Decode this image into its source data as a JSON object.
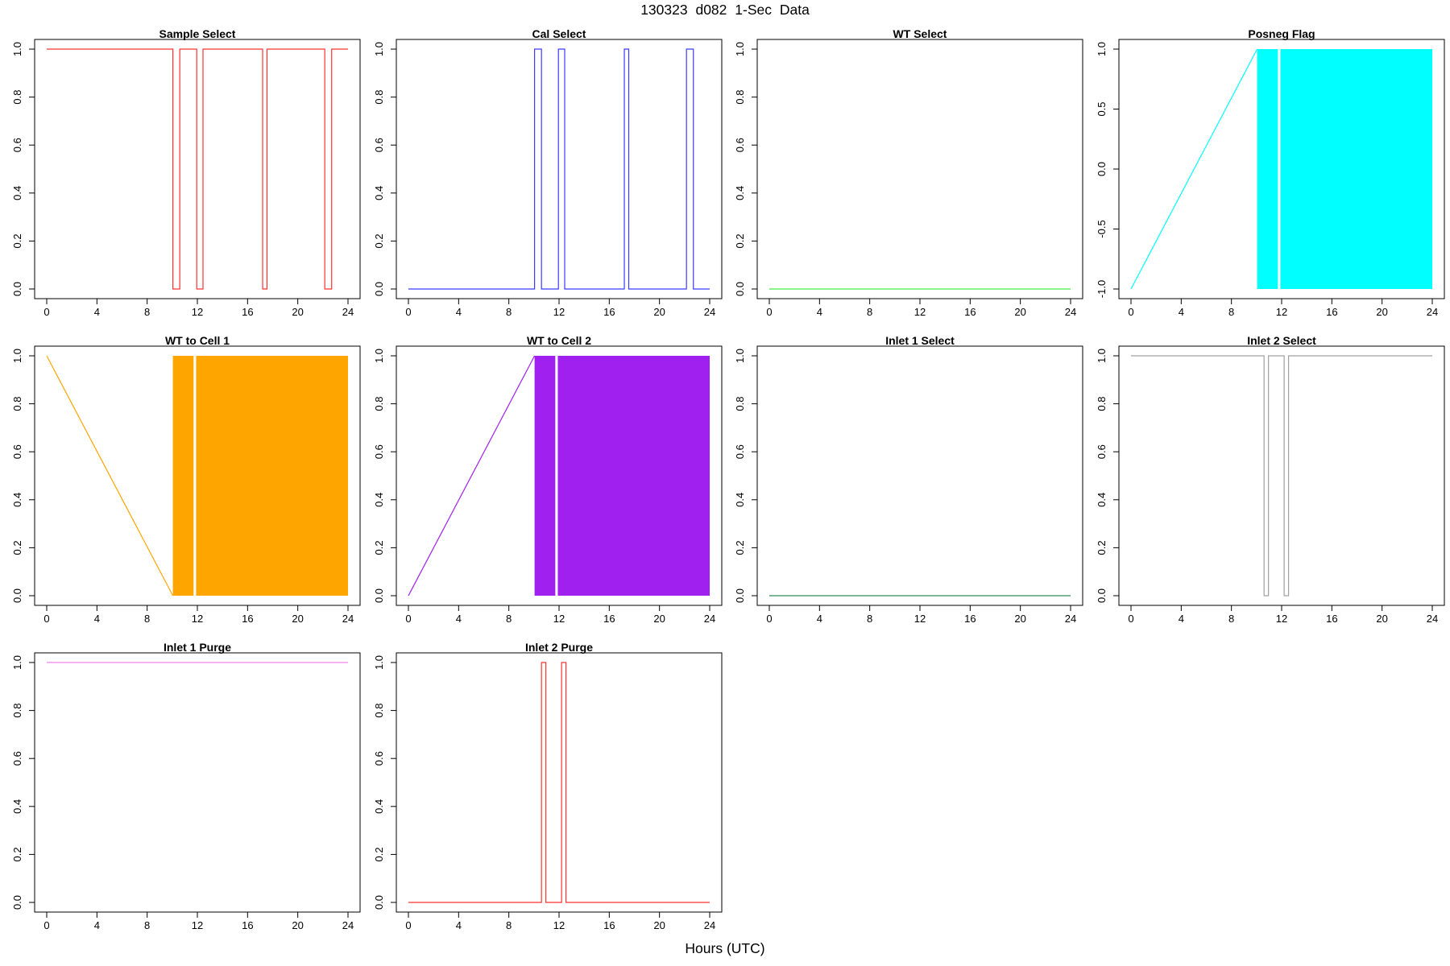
{
  "title": "130323   d082   1-Sec Data",
  "x_axis_title": "Hours (UTC)",
  "chart_data": [
    {
      "type": "line",
      "title": "Sample Select",
      "color": "#ff3030",
      "xlim": [
        0,
        24
      ],
      "ylim": [
        0,
        1
      ],
      "x_ticks": [
        0,
        4,
        8,
        12,
        16,
        20,
        24
      ],
      "y_ticks": [
        0,
        0.2,
        0.4,
        0.6,
        0.8,
        1
      ],
      "y_tick_labels": [
        "0.0",
        "0.2",
        "0.4",
        "0.6",
        "0.8",
        "1.0"
      ],
      "series": [
        {
          "x": [
            0,
            10.05,
            10.05,
            10.6,
            10.6,
            11.95,
            11.95,
            12.45,
            12.45,
            17.2,
            17.2,
            17.55,
            17.55,
            22.15,
            22.15,
            22.7,
            22.7,
            24
          ],
          "y": [
            1,
            1,
            0,
            0,
            1,
            1,
            0,
            0,
            1,
            1,
            0,
            0,
            1,
            1,
            0,
            0,
            1,
            1
          ]
        }
      ]
    },
    {
      "type": "line",
      "title": "Cal Select",
      "color": "#3a3aff",
      "xlim": [
        0,
        24
      ],
      "ylim": [
        0,
        1
      ],
      "x_ticks": [
        0,
        4,
        8,
        12,
        16,
        20,
        24
      ],
      "y_ticks": [
        0,
        0.2,
        0.4,
        0.6,
        0.8,
        1
      ],
      "y_tick_labels": [
        "0.0",
        "0.2",
        "0.4",
        "0.6",
        "0.8",
        "1.0"
      ],
      "series": [
        {
          "x": [
            0,
            10.05,
            10.05,
            10.6,
            10.6,
            11.95,
            11.95,
            12.45,
            12.45,
            17.2,
            17.2,
            17.55,
            17.55,
            22.15,
            22.15,
            22.7,
            22.7,
            24
          ],
          "y": [
            0,
            0,
            1,
            1,
            0,
            0,
            1,
            1,
            0,
            0,
            1,
            1,
            0,
            0,
            1,
            1,
            0,
            0
          ]
        }
      ]
    },
    {
      "type": "line",
      "title": "WT Select",
      "color": "#44ee44",
      "xlim": [
        0,
        24
      ],
      "ylim": [
        0,
        1
      ],
      "x_ticks": [
        0,
        4,
        8,
        12,
        16,
        20,
        24
      ],
      "y_ticks": [
        0,
        0.2,
        0.4,
        0.6,
        0.8,
        1
      ],
      "y_tick_labels": [
        "0.0",
        "0.2",
        "0.4",
        "0.6",
        "0.8",
        "1.0"
      ],
      "series": [
        {
          "x": [
            0,
            24
          ],
          "y": [
            0,
            0
          ]
        }
      ]
    },
    {
      "type": "area",
      "title": "Posneg Flag",
      "color": "#00ffff",
      "xlim": [
        0,
        24
      ],
      "ylim": [
        -1,
        1
      ],
      "x_ticks": [
        0,
        4,
        8,
        12,
        16,
        20,
        24
      ],
      "y_ticks": [
        -1,
        -0.5,
        0,
        0.5,
        1
      ],
      "y_tick_labels": [
        "-1.0",
        "-0.5",
        "0.0",
        "0.5",
        "1.0"
      ],
      "series": [
        {
          "x": [
            0,
            10.05
          ],
          "y": [
            -1,
            1
          ]
        }
      ],
      "bands": [
        {
          "x0": 10.05,
          "x1": 11.7,
          "y0": -1,
          "y1": 1
        },
        {
          "x0": 11.9,
          "x1": 24,
          "y0": -1,
          "y1": 1
        }
      ]
    },
    {
      "type": "area",
      "title": "WT to Cell 1",
      "color": "#ffa500",
      "xlim": [
        0,
        24
      ],
      "ylim": [
        0,
        1
      ],
      "x_ticks": [
        0,
        4,
        8,
        12,
        16,
        20,
        24
      ],
      "y_ticks": [
        0,
        0.2,
        0.4,
        0.6,
        0.8,
        1
      ],
      "y_tick_labels": [
        "0.0",
        "0.2",
        "0.4",
        "0.6",
        "0.8",
        "1.0"
      ],
      "series": [
        {
          "x": [
            0,
            10.05
          ],
          "y": [
            1,
            0
          ]
        }
      ],
      "bands": [
        {
          "x0": 10.05,
          "x1": 11.7,
          "y0": 0,
          "y1": 1
        },
        {
          "x0": 11.9,
          "x1": 24,
          "y0": 0,
          "y1": 1
        }
      ]
    },
    {
      "type": "area",
      "title": "WT to Cell 2",
      "color": "#a020f0",
      "xlim": [
        0,
        24
      ],
      "ylim": [
        0,
        1
      ],
      "x_ticks": [
        0,
        4,
        8,
        12,
        16,
        20,
        24
      ],
      "y_ticks": [
        0,
        0.2,
        0.4,
        0.6,
        0.8,
        1
      ],
      "y_tick_labels": [
        "0.0",
        "0.2",
        "0.4",
        "0.6",
        "0.8",
        "1.0"
      ],
      "series": [
        {
          "x": [
            0,
            10.05
          ],
          "y": [
            0,
            1
          ]
        }
      ],
      "bands": [
        {
          "x0": 10.05,
          "x1": 11.7,
          "y0": 0,
          "y1": 1
        },
        {
          "x0": 11.9,
          "x1": 24,
          "y0": 0,
          "y1": 1
        }
      ]
    },
    {
      "type": "line",
      "title": "Inlet 1 Select",
      "color": "#2e8b57",
      "xlim": [
        0,
        24
      ],
      "ylim": [
        0,
        1
      ],
      "x_ticks": [
        0,
        4,
        8,
        12,
        16,
        20,
        24
      ],
      "y_ticks": [
        0,
        0.2,
        0.4,
        0.6,
        0.8,
        1
      ],
      "y_tick_labels": [
        "0.0",
        "0.2",
        "0.4",
        "0.6",
        "0.8",
        "1.0"
      ],
      "series": [
        {
          "x": [
            0,
            24
          ],
          "y": [
            0,
            0
          ]
        }
      ]
    },
    {
      "type": "line",
      "title": "Inlet 2 Select",
      "color": "#a0a0a0",
      "xlim": [
        0,
        24
      ],
      "ylim": [
        0,
        1
      ],
      "x_ticks": [
        0,
        4,
        8,
        12,
        16,
        20,
        24
      ],
      "y_ticks": [
        0,
        0.2,
        0.4,
        0.6,
        0.8,
        1
      ],
      "y_tick_labels": [
        "0.0",
        "0.2",
        "0.4",
        "0.6",
        "0.8",
        "1.0"
      ],
      "series": [
        {
          "x": [
            0,
            10.6,
            10.6,
            10.95,
            10.95,
            12.2,
            12.2,
            12.55,
            12.55,
            24
          ],
          "y": [
            1,
            1,
            0,
            0,
            1,
            1,
            0,
            0,
            1,
            1
          ]
        }
      ]
    },
    {
      "type": "line",
      "title": "Inlet 1 Purge",
      "color": "#ee82ee",
      "xlim": [
        0,
        24
      ],
      "ylim": [
        0,
        1
      ],
      "x_ticks": [
        0,
        4,
        8,
        12,
        16,
        20,
        24
      ],
      "y_ticks": [
        0,
        0.2,
        0.4,
        0.6,
        0.8,
        1
      ],
      "y_tick_labels": [
        "0.0",
        "0.2",
        "0.4",
        "0.6",
        "0.8",
        "1.0"
      ],
      "series": [
        {
          "x": [
            0,
            24
          ],
          "y": [
            1,
            1
          ]
        }
      ]
    },
    {
      "type": "line",
      "title": "Inlet 2 Purge",
      "color": "#ff3030",
      "xlim": [
        0,
        24
      ],
      "ylim": [
        0,
        1
      ],
      "x_ticks": [
        0,
        4,
        8,
        12,
        16,
        20,
        24
      ],
      "y_ticks": [
        0,
        0.2,
        0.4,
        0.6,
        0.8,
        1
      ],
      "y_tick_labels": [
        "0.0",
        "0.2",
        "0.4",
        "0.6",
        "0.8",
        "1.0"
      ],
      "series": [
        {
          "x": [
            0,
            10.6,
            10.6,
            10.95,
            10.95,
            12.2,
            12.2,
            12.55,
            12.55,
            24
          ],
          "y": [
            0,
            0,
            1,
            1,
            0,
            0,
            1,
            1,
            0,
            0
          ]
        }
      ]
    }
  ]
}
